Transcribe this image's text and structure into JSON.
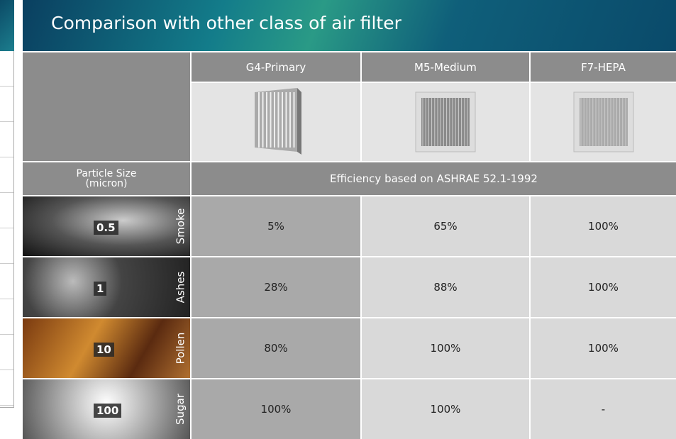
{
  "header": {
    "title": "Comparison with other class of air filter"
  },
  "table": {
    "columns": [
      "G4-Primary",
      "M5-Medium",
      "F7-HEPA"
    ],
    "particle_header": "Particle Size\n(micron)",
    "efficiency_header": "Efficiency based on ASHRAE 52.1-1992",
    "rows": [
      {
        "size": "0.5",
        "label": "Smoke",
        "values": [
          "5%",
          "65%",
          "100%"
        ]
      },
      {
        "size": "1",
        "label": "Ashes",
        "values": [
          "28%",
          "88%",
          "100%"
        ]
      },
      {
        "size": "10",
        "label": "Pollen",
        "values": [
          "80%",
          "100%",
          "100%"
        ]
      },
      {
        "size": "100",
        "label": "Sugar",
        "values": [
          "100%",
          "100%",
          "-"
        ]
      }
    ]
  }
}
